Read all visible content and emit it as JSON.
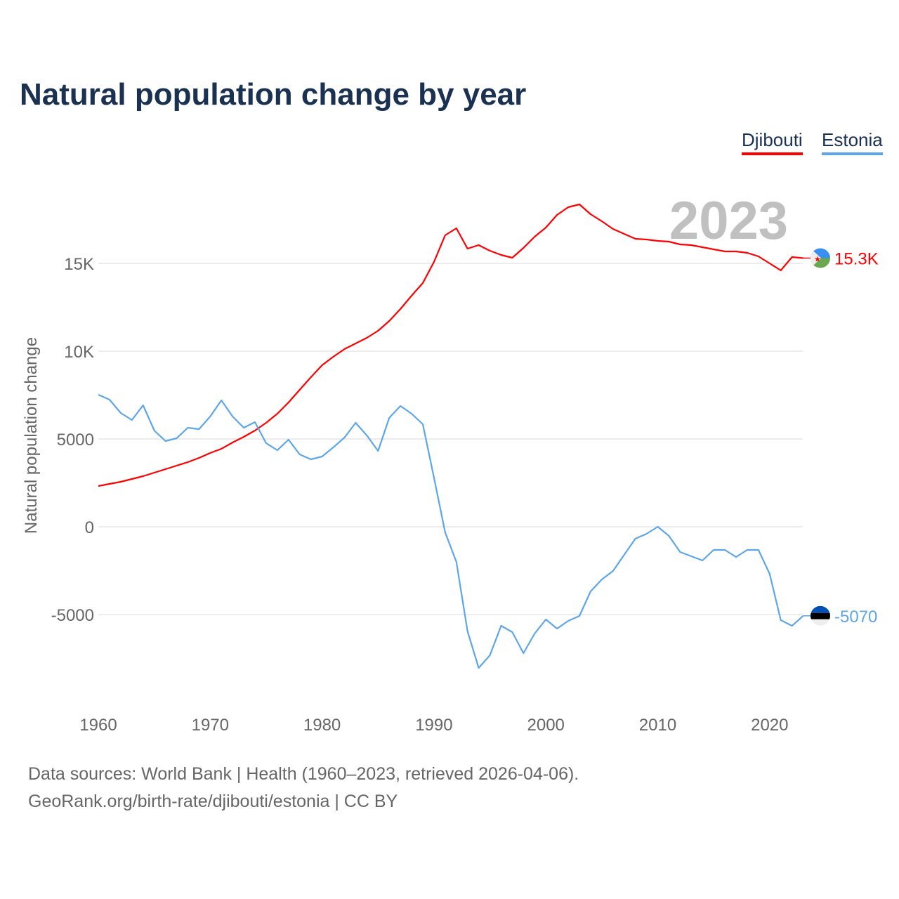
{
  "chart_data": {
    "type": "line",
    "title": "Natural population change by year",
    "ylabel": "Natural population change",
    "xlabel": "",
    "ylim": [
      -10000,
      20000
    ],
    "xlim": [
      1960,
      2023
    ],
    "grid": true,
    "legend_position": "top-right",
    "current_year_label": "2023",
    "yticks": [
      {
        "v": 15000,
        "label": "15K"
      },
      {
        "v": 10000,
        "label": "10K"
      },
      {
        "v": 5000,
        "label": "5000"
      },
      {
        "v": 0,
        "label": "0"
      },
      {
        "v": -5000,
        "label": "-5000"
      }
    ],
    "xticks": [
      1960,
      1970,
      1980,
      1990,
      2000,
      2010,
      2020
    ],
    "x": [
      1960,
      1961,
      1962,
      1963,
      1964,
      1965,
      1966,
      1967,
      1968,
      1969,
      1970,
      1971,
      1972,
      1973,
      1974,
      1975,
      1976,
      1977,
      1978,
      1979,
      1980,
      1981,
      1982,
      1983,
      1984,
      1985,
      1986,
      1987,
      1988,
      1989,
      1990,
      1991,
      1992,
      1993,
      1994,
      1995,
      1996,
      1997,
      1998,
      1999,
      2000,
      2001,
      2002,
      2003,
      2004,
      2005,
      2006,
      2007,
      2008,
      2009,
      2010,
      2011,
      2012,
      2013,
      2014,
      2015,
      2016,
      2017,
      2018,
      2019,
      2020,
      2021,
      2022,
      2023
    ],
    "series": [
      {
        "name": "Djibouti",
        "color": "#ff0000",
        "end_label": "15.3K",
        "flag": "djibouti-flag",
        "values": [
          2320,
          2440,
          2560,
          2720,
          2880,
          3080,
          3280,
          3480,
          3680,
          3920,
          4200,
          4440,
          4800,
          5120,
          5480,
          5920,
          6440,
          7080,
          7800,
          8520,
          9200,
          9680,
          10120,
          10440,
          10760,
          11160,
          11720,
          12400,
          13160,
          13880,
          15080,
          16600,
          17000,
          15840,
          16040,
          15720,
          15480,
          15320,
          15880,
          16520,
          17040,
          17760,
          18200,
          18360,
          17800,
          17400,
          16960,
          16680,
          16400,
          16360,
          16280,
          16240,
          16080,
          16040,
          15920,
          15800,
          15680,
          15680,
          15600,
          15400,
          15000,
          14600,
          15360,
          15300
        ]
      },
      {
        "name": "Estonia",
        "color": "#5ea6ea",
        "end_label": "-5070",
        "flag": "estonia-flag",
        "values": [
          7520,
          7240,
          6480,
          6080,
          6920,
          5480,
          4880,
          5040,
          5640,
          5560,
          6280,
          7200,
          6280,
          5640,
          5960,
          4760,
          4360,
          4960,
          4120,
          3840,
          4000,
          4520,
          5080,
          5920,
          5200,
          4320,
          6200,
          6880,
          6440,
          5840,
          2800,
          -320,
          -2000,
          -5960,
          -8040,
          -7320,
          -5640,
          -6000,
          -7200,
          -6080,
          -5280,
          -5800,
          -5360,
          -5080,
          -3680,
          -3000,
          -2520,
          -1600,
          -680,
          -400,
          0,
          -520,
          -1440,
          -1680,
          -1920,
          -1320,
          -1320,
          -1720,
          -1320,
          -1320,
          -2680,
          -5320,
          -5640,
          -5070
        ]
      }
    ]
  },
  "footer": {
    "line1": "Data sources: World Bank | Health (1960–2023, retrieved 2026-04-06).",
    "line2": "GeoRank.org/birth-rate/djibouti/estonia | CC BY"
  }
}
